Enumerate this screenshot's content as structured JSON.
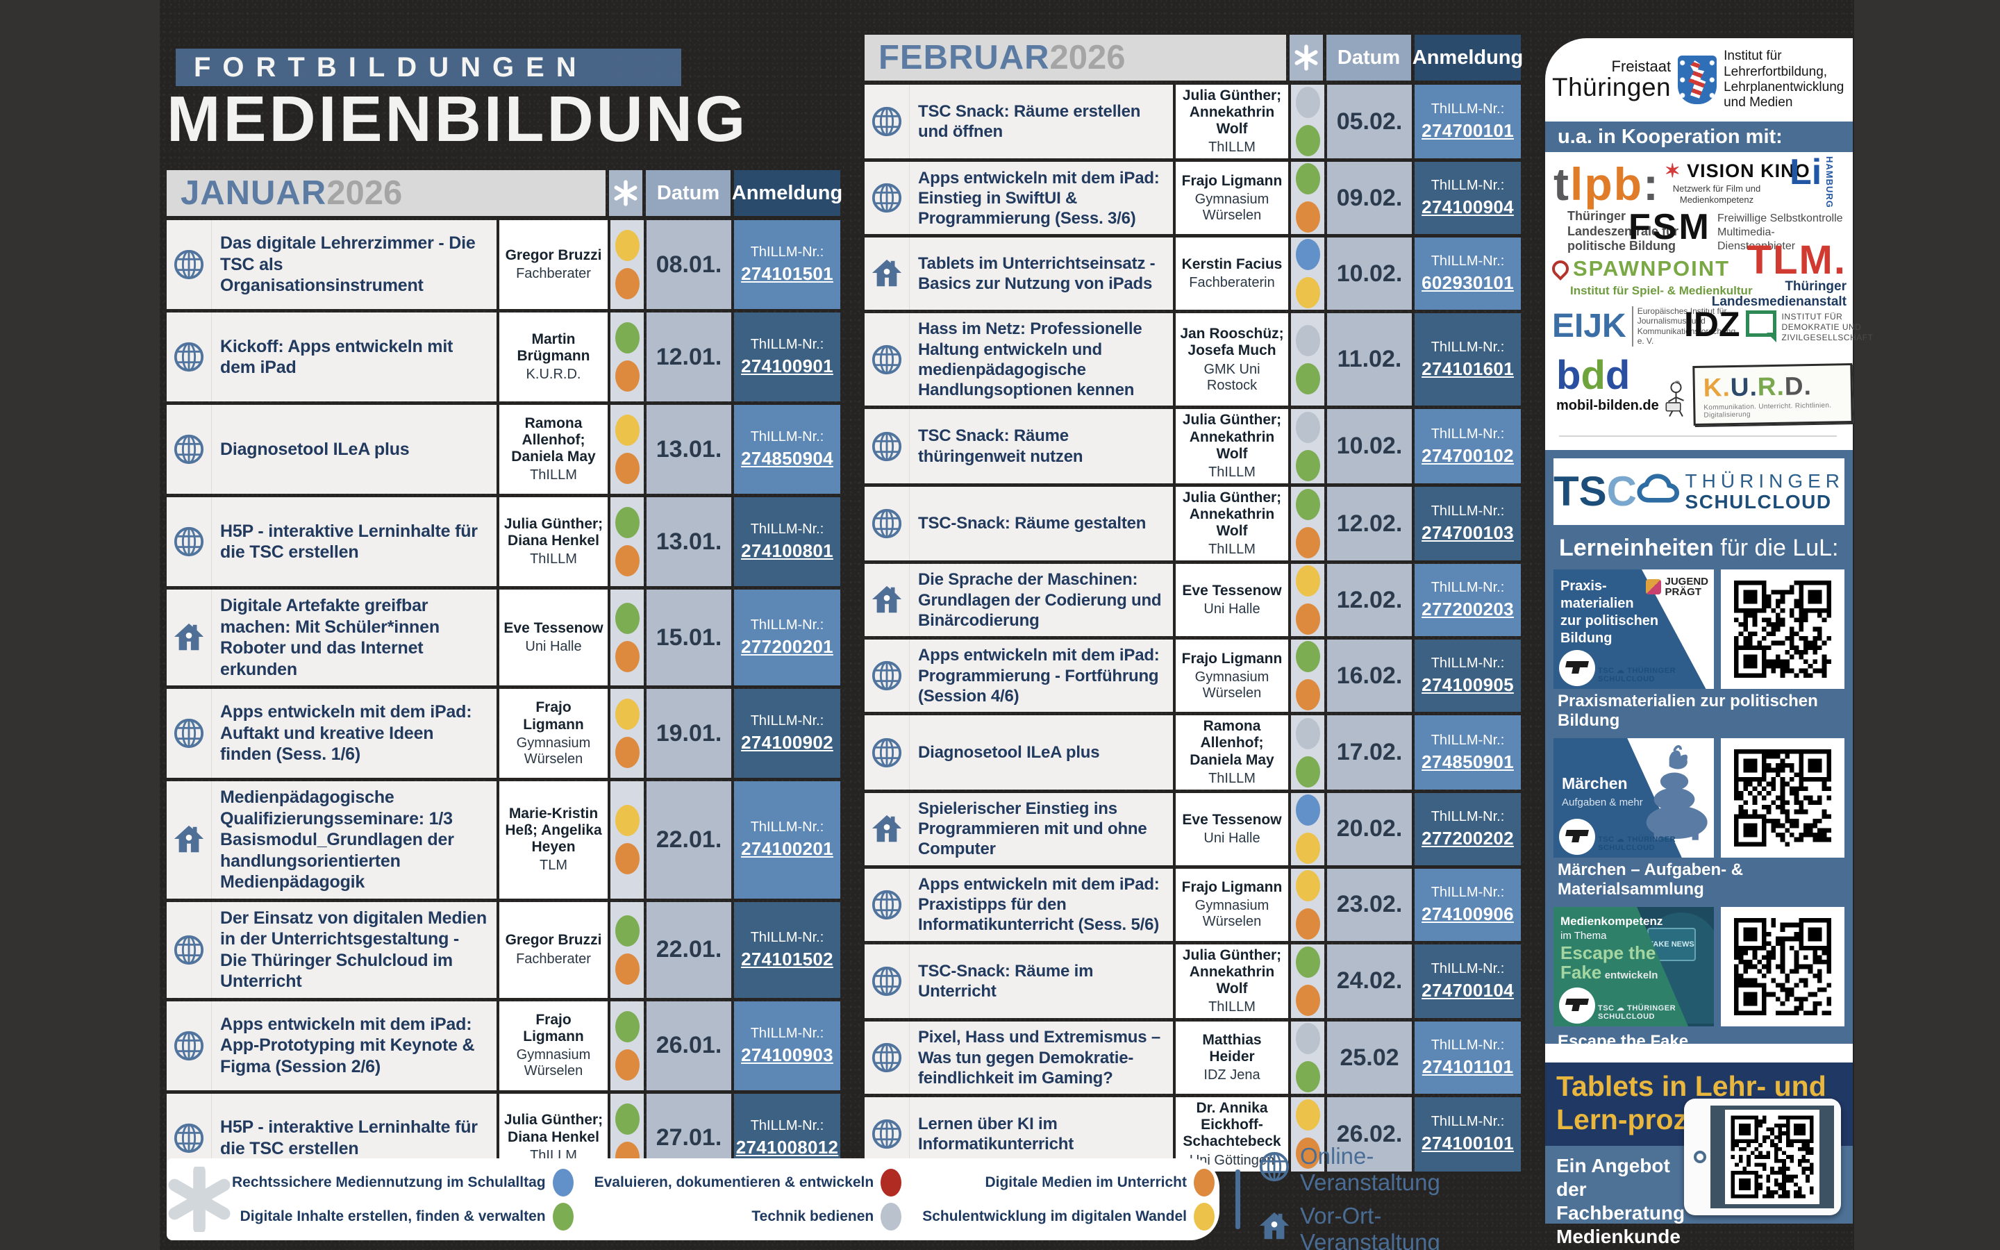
{
  "title": {
    "kicker": "FORTBILDUNGEN",
    "main": "MEDIENBILDUNG"
  },
  "columns": {
    "datum": "Datum",
    "anmeldung": "Anmeldung",
    "thillm_label": "ThILLM-Nr.:"
  },
  "dot_colors": {
    "yellow": "#edc24b",
    "orange": "#dd8a3f",
    "green": "#7cad52",
    "gray": "#b9c2cd",
    "blue": "#6290c8",
    "red": "#b02c23"
  },
  "months": [
    {
      "name": "JANUAR",
      "year": "2026",
      "events": [
        {
          "type": "online",
          "title": "Das digitale Lehrerzimmer - Die TSC als Organisationsinstrument",
          "names": "Gregor Bruzzi",
          "org": "Fachberater",
          "dots": [
            "yellow",
            "orange"
          ],
          "date": "08.01.",
          "number": "274101501"
        },
        {
          "type": "online",
          "title": "Kickoff: Apps entwickeln mit dem iPad",
          "names": "Martin Brügmann",
          "org": "K.U.R.D.",
          "dots": [
            "green",
            "orange"
          ],
          "date": "12.01.",
          "number": "274100901"
        },
        {
          "type": "online",
          "title": "Diagnosetool ILeA plus",
          "names": "Ramona Allenhof; Daniela May",
          "org": "ThILLM",
          "dots": [
            "yellow",
            "orange"
          ],
          "date": "13.01.",
          "number": "274850904"
        },
        {
          "type": "online",
          "title": "H5P - interaktive Lerninhalte für die TSC erstellen",
          "names": "Julia Günther; Diana Henkel",
          "org": "ThILLM",
          "dots": [
            "green",
            "orange"
          ],
          "date": "13.01.",
          "number": "274100801"
        },
        {
          "type": "vorort",
          "title": "Digitale Artefakte greifbar machen: Mit Schüler*innen Roboter und das Internet erkunden",
          "names": "Eve Tessenow",
          "org": "Uni Halle",
          "dots": [
            "green",
            "orange"
          ],
          "date": "15.01.",
          "number": "277200201"
        },
        {
          "type": "online",
          "title": "Apps entwickeln mit dem iPad: Auftakt und kreative Ideen finden (Sess. 1/6)",
          "names": "Frajo Ligmann",
          "org": "Gymnasium Würselen",
          "dots": [
            "yellow",
            "orange"
          ],
          "date": "19.01.",
          "number": "274100902"
        },
        {
          "type": "vorort",
          "title": "Medienpädagogische Qualifizierungsseminare: 1/3 Basismodul_Grundlagen der handlungsorientierten Medienpädagogik",
          "names": "Marie-Kristin Heß; Angelika Heyen",
          "org": "TLM",
          "dots": [
            "yellow",
            "orange"
          ],
          "date": "22.01.",
          "number": "274100201"
        },
        {
          "type": "online",
          "title": "Der Einsatz von digitalen Medien in der Unterrichtsgestaltung - Die Thüringer Schulcloud im Unterricht",
          "names": "Gregor Bruzzi",
          "org": "Fachberater",
          "dots": [
            "green",
            "orange"
          ],
          "date": "22.01.",
          "number": "274101502"
        },
        {
          "type": "online",
          "title": "Apps entwickeln mit dem iPad: App-Prototyping mit Keynote & Figma (Session 2/6)",
          "names": "Frajo Ligmann",
          "org": "Gymnasium Würselen",
          "dots": [
            "green",
            "orange"
          ],
          "date": "26.01.",
          "number": "274100903"
        },
        {
          "type": "online",
          "title": "H5P - interaktive Lerninhalte für die TSC erstellen",
          "names": "Julia Günther; Diana Henkel",
          "org": "ThILLM",
          "dots": [
            "green",
            "orange"
          ],
          "date": "27.01.",
          "number": "2741008012"
        }
      ]
    },
    {
      "name": "FEBRUAR",
      "year": "2026",
      "events": [
        {
          "type": "online",
          "title": "TSC Snack: Räume erstellen und öffnen",
          "names": "Julia Günther; Annekathrin Wolf",
          "org": "ThILLM",
          "dots": [
            "gray",
            "green"
          ],
          "date": "05.02.",
          "number": "274700101"
        },
        {
          "type": "online",
          "title": "Apps entwickeln mit dem iPad: Einstieg in SwiftUI & Programmierung (Sess. 3/6)",
          "names": "Frajo Ligmann",
          "org": "Gymnasium Würselen",
          "dots": [
            "green",
            "orange"
          ],
          "date": "09.02.",
          "number": "274100904"
        },
        {
          "type": "vorort",
          "title": "Tablets im Unterrichtseinsatz - Basics zur Nutzung von iPads",
          "names": "Kerstin Facius",
          "org": "Fachberaterin",
          "dots": [
            "blue",
            "yellow"
          ],
          "date": "10.02.",
          "number": "602930101"
        },
        {
          "type": "online",
          "title": "Hass im Netz: Professionelle Haltung entwickeln und medienpädagogische Handlungsoptionen kennen",
          "names": "Jan Rooschüz; Josefa Much",
          "org": "GMK Uni Rostock",
          "dots": [
            "gray",
            "green"
          ],
          "date": "11.02.",
          "number": "274101601"
        },
        {
          "type": "online",
          "title": "TSC Snack: Räume thüringenweit nutzen",
          "names": "Julia Günther; Annekathrin Wolf",
          "org": "ThILLM",
          "dots": [
            "gray",
            "green"
          ],
          "date": "10.02.",
          "number": "274700102"
        },
        {
          "type": "online",
          "title": "TSC-Snack: Räume gestalten",
          "names": "Julia Günther; Annekathrin Wolf",
          "org": "ThILLM",
          "dots": [
            "green",
            "orange"
          ],
          "date": "12.02.",
          "number": "274700103"
        },
        {
          "type": "vorort",
          "title": "Die Sprache der Maschinen: Grundlagen der Codierung und Binärcodierung",
          "names": "Eve Tessenow",
          "org": "Uni Halle",
          "dots": [
            "yellow",
            "orange"
          ],
          "date": "12.02.",
          "number": "277200203"
        },
        {
          "type": "online",
          "title": "Apps entwickeln mit dem iPad: Programmierung - Fortführung (Session 4/6)",
          "names": "Frajo Ligmann",
          "org": "Gymnasium Würselen",
          "dots": [
            "green",
            "orange"
          ],
          "date": "16.02.",
          "number": "274100905"
        },
        {
          "type": "online",
          "title": "Diagnosetool ILeA plus",
          "names": "Ramona Allenhof; Daniela May",
          "org": "ThILLM",
          "dots": [
            "gray",
            "green"
          ],
          "date": "17.02.",
          "number": "274850901"
        },
        {
          "type": "vorort",
          "title": "Spielerischer Einstieg ins Programmieren mit und ohne Computer",
          "names": "Eve Tessenow",
          "org": "Uni Halle",
          "dots": [
            "blue",
            "yellow"
          ],
          "date": "20.02.",
          "number": "277200202"
        },
        {
          "type": "online",
          "title": "Apps entwickeln mit dem iPad: Praxistipps für den Informatikunterricht (Sess. 5/6)",
          "names": "Frajo Ligmann",
          "org": "Gymnasium Würselen",
          "dots": [
            "yellow",
            "orange"
          ],
          "date": "23.02.",
          "number": "274100906"
        },
        {
          "type": "online",
          "title": "TSC-Snack: Räume im Unterricht",
          "names": "Julia Günther; Annekathrin Wolf",
          "org": "ThILLM",
          "dots": [
            "green",
            "orange"
          ],
          "date": "24.02.",
          "number": "274700104"
        },
        {
          "type": "online",
          "title": "Pixel, Hass und Extremismus – Was tun gegen Demokratie-feindlichkeit im Gaming?",
          "names": "Matthias Heider",
          "org": "IDZ Jena",
          "dots": [
            "gray",
            "green"
          ],
          "date": "25.02",
          "number": "274101101"
        },
        {
          "type": "online",
          "title": "Lernen über KI im Informatikunterricht",
          "names": "Dr. Annika Eickhoff-Schachtebeck",
          "org": "Uni Göttingen",
          "dots": [
            "yellow",
            "orange"
          ],
          "date": "26.02.",
          "number": "274100101"
        }
      ]
    }
  ],
  "legend": {
    "items": [
      {
        "label": "Rechtssichere Mediennutzung im Schulalltag",
        "color": "blue"
      },
      {
        "label": "Digitale Inhalte erstellen, finden & verwalten",
        "color": "green"
      },
      {
        "label": "Evaluieren, dokumentieren & entwickeln",
        "color": "red"
      },
      {
        "label": "Technik bedienen",
        "color": "gray"
      },
      {
        "label": "Digitale Medien im Unterricht",
        "color": "orange"
      },
      {
        "label": "Schulentwicklung im digitalen Wandel",
        "color": "yellow"
      }
    ],
    "event_types": [
      {
        "icon": "globe",
        "label": "Online-Veranstaltung"
      },
      {
        "icon": "house",
        "label": "Vor-Ort-Veranstaltung"
      }
    ]
  },
  "sidebar": {
    "thueringen": {
      "pre": "Freistaat",
      "name": "Thüringen",
      "institute": "Institut für Lehrerfortbildung, Lehrplanentwicklung und Medien"
    },
    "koop_heading": "u.a. in Kooperation mit:",
    "logos": [
      {
        "t1": "t",
        "t2": "lpb",
        "t3": ":",
        "sub": "Thüringer Landeszentrale für politische Bildung"
      },
      {
        "main": "VISION KINO",
        "sub": "Netzwerk für Film und Medienkompetenz"
      },
      {
        "main": "Li",
        "sub": "HAMBURG"
      },
      {
        "main": "FSM",
        "sub": "Freiwillige Selbstkontrolle Multimedia-Diensteanbieter"
      },
      {
        "main": "SPAWNPOINT",
        "sub": "Institut für Spiel- & Medienkultur"
      },
      {
        "main": "TLM.",
        "sub": "Thüringer Landesmedienanstalt"
      },
      {
        "main": "EIJK",
        "sub": "Europäisches Institut für Journalismus- und Kommunikationsforschung e. V."
      },
      {
        "main": "IDZ",
        "sub": "INSTITUT FÜR DEMOKRATIE UND ZIVILGESELLSCHAFT"
      },
      {
        "main": "bd",
        "sub": "mobil-bilden.de"
      },
      {
        "k": "K.",
        "u": "U.",
        "r": "R.",
        "d": "D.",
        "sub": "Kommunikation. Unterricht. Richtlinien. Digitalisierung"
      }
    ],
    "tsc": {
      "abbr": "TSC",
      "line1": "THÜRINGER",
      "line2": "SCHULCLOUD"
    },
    "lern_bold": "Lerneinheiten",
    "lern_rest": " für die LuL:",
    "cards": [
      {
        "panel_lines": [
          "Praxis-",
          "materialien",
          "zur politischen",
          "Bildung"
        ],
        "badge1": "JUGEND",
        "badge2": "PRÄGT",
        "caption": "Praxismaterialien zur politischen Bildung"
      },
      {
        "panel_title": "Märchen",
        "panel_sub": "Aufgaben & mehr",
        "caption": "Märchen –  Aufgaben- & Materialsammlung"
      },
      {
        "pre1": "Medienkompetenz",
        "pre2": "im Thema",
        "big1": "Escape the",
        "big2": "Fake",
        "post": "entwickeln",
        "screen_label": "FAKE NEWS",
        "caption": "Escape the Fake"
      }
    ],
    "tablets": {
      "heading": "Tablets in Lehr- und Lern-prozessen",
      "sub": "Ein Angebot der Fachberatung Medienkunde"
    }
  },
  "colors": {
    "accent_blue": "#4a6d94",
    "header_dark": "#2b4b6d",
    "reg_light": "#5d88b6",
    "reg_dark": "#3d6183",
    "navy": "#203864",
    "yellow_heading": "#e9b63e"
  }
}
